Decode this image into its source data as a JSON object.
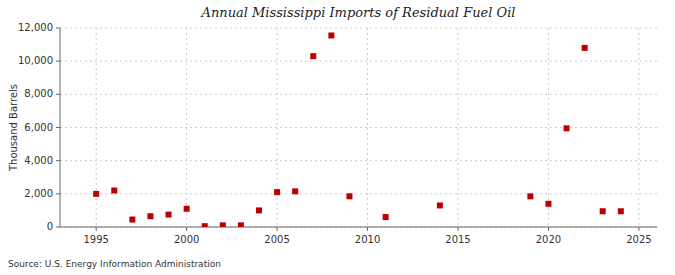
{
  "chart_data": {
    "type": "scatter",
    "title": "Annual Mississippi Imports of Residual Fuel Oil",
    "y_label": "Thousand Barrels",
    "annotations": [
      "Source: U.S. Energy Information Administration"
    ],
    "x": [
      1995,
      1996,
      1997,
      1998,
      1999,
      2000,
      2001,
      2002,
      2003,
      2004,
      2005,
      2006,
      2007,
      2008,
      2009,
      2011,
      2014,
      2019,
      2020,
      2021,
      2022,
      2023,
      2024
    ],
    "values": [
      2000,
      2200,
      450,
      650,
      750,
      1100,
      50,
      100,
      100,
      1000,
      2100,
      2150,
      10300,
      11550,
      1850,
      600,
      1300,
      1850,
      1400,
      5950,
      10800,
      950,
      950
    ],
    "color": "#bb0000",
    "marker": "square",
    "xlim": [
      1993,
      2026
    ],
    "ylim": [
      0,
      12000
    ],
    "xticks": [
      1995,
      2000,
      2005,
      2010,
      2015,
      2020,
      2025
    ],
    "yticks": [
      0,
      {
        "value": 2000,
        "label": "2,000"
      },
      {
        "value": 4000,
        "label": "4,000"
      },
      {
        "value": 6000,
        "label": "6,000"
      },
      {
        "value": 8000,
        "label": "8,000"
      },
      {
        "value": 10000,
        "label": "10,000"
      },
      {
        "value": 12000,
        "label": "12,000"
      }
    ],
    "grid": true
  }
}
